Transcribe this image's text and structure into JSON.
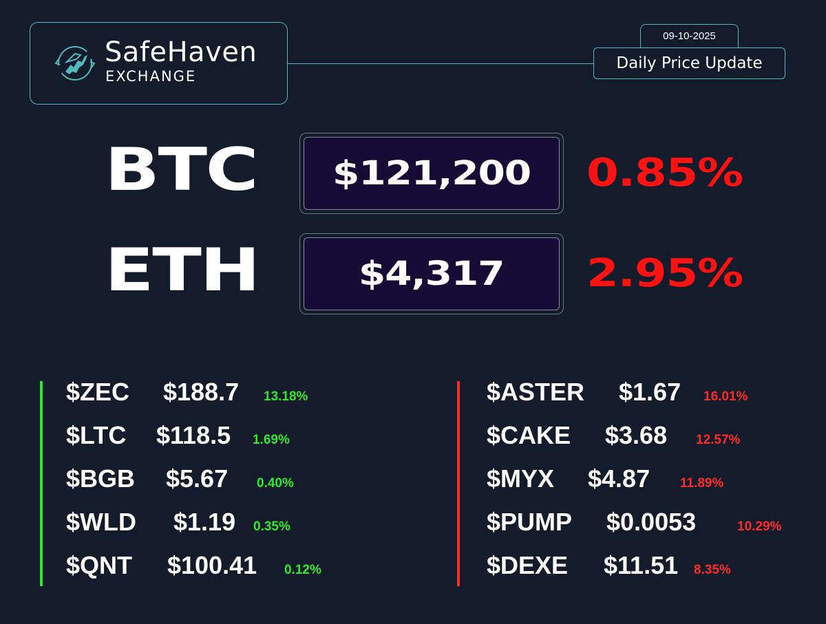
{
  "brand": {
    "name": "SafeHaven",
    "subtitle": "EXCHANGE"
  },
  "header": {
    "date": "09-10-2025",
    "update_label": "Daily Price Update"
  },
  "main": [
    {
      "symbol": "BTC",
      "price": "$121,200",
      "change": "0.85%"
    },
    {
      "symbol": "ETH",
      "price": "$4,317",
      "change": "2.95%"
    }
  ],
  "gainers": [
    {
      "symbol": "$ZEC",
      "price": "$188.7",
      "change": "13.18%"
    },
    {
      "symbol": "$LTC",
      "price": "$118.5",
      "change": "1.69%"
    },
    {
      "symbol": "$BGB",
      "price": "$5.67",
      "change": "0.40%"
    },
    {
      "symbol": "$WLD",
      "price": "$1.19",
      "change": "0.35%"
    },
    {
      "symbol": "$QNT",
      "price": "$100.41",
      "change": "0.12%"
    }
  ],
  "losers": [
    {
      "symbol": "$ASTER",
      "price": "$1.67",
      "change": "16.01%"
    },
    {
      "symbol": "$CAKE",
      "price": "$3.68",
      "change": "12.57%"
    },
    {
      "symbol": "$MYX",
      "price": "$4.87",
      "change": "11.89%"
    },
    {
      "symbol": "$PUMP",
      "price": "$0.0053",
      "change": "10.29%"
    },
    {
      "symbol": "$DEXE",
      "price": "$11.51",
      "change": "8.35%"
    }
  ],
  "colors": {
    "background": "#141b2b",
    "accent": "#4fb9bd",
    "positive": "#2ee82e",
    "negative": "#ff2a2a",
    "price_box": "#150b34"
  },
  "icons": {
    "logo": "bull-logo-icon"
  }
}
